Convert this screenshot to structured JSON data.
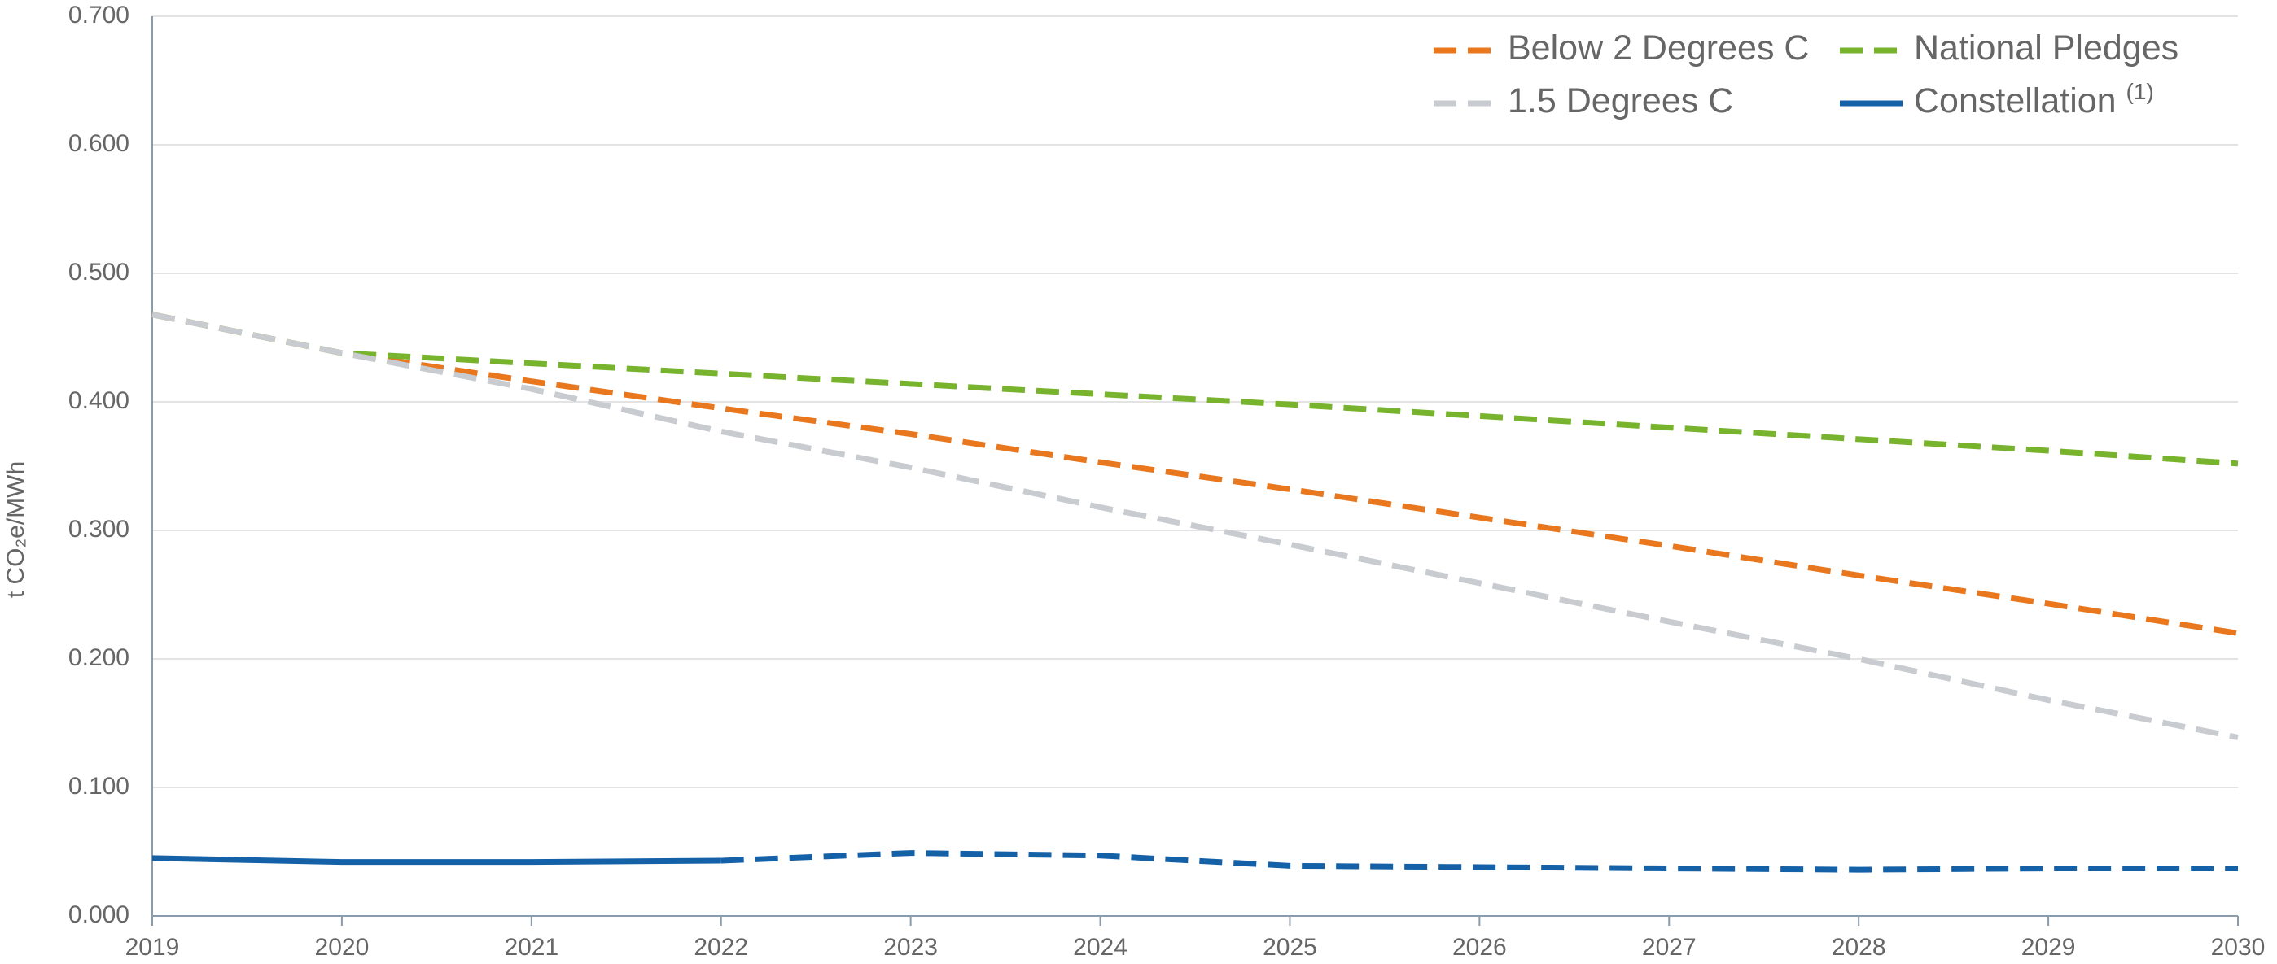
{
  "chart_data": {
    "type": "line",
    "ylabel": "t CO₂e/MWh",
    "x": [
      2019,
      2020,
      2021,
      2022,
      2023,
      2024,
      2025,
      2026,
      2027,
      2028,
      2029,
      2030
    ],
    "xlim": [
      2019,
      2030
    ],
    "xticks": [
      2019,
      2020,
      2021,
      2022,
      2023,
      2024,
      2025,
      2026,
      2027,
      2028,
      2029,
      2030
    ],
    "ylim": [
      0,
      0.7
    ],
    "yticks": [
      {
        "value": 0,
        "label": "0.000"
      },
      {
        "value": 0.1,
        "label": "0.100"
      },
      {
        "value": 0.2,
        "label": "0.200"
      },
      {
        "value": 0.3,
        "label": "0.300"
      },
      {
        "value": 0.4,
        "label": "0.400"
      },
      {
        "value": 0.5,
        "label": "0.500"
      },
      {
        "value": 0.6,
        "label": "0.600"
      },
      {
        "value": 0.7,
        "label": "0.700"
      }
    ],
    "grid": true,
    "legend": "top-right",
    "series": [
      {
        "name": "Below 2 Degrees C",
        "color": "#e8771e",
        "dashed": true,
        "values": [
          0.468,
          0.438,
          0.416,
          0.395,
          0.375,
          0.353,
          0.332,
          0.31,
          0.288,
          0.265,
          0.243,
          0.22
        ]
      },
      {
        "name": "National Pledges",
        "color": "#77b32d",
        "dashed": true,
        "values": [
          0.468,
          0.438,
          0.43,
          0.422,
          0.414,
          0.406,
          0.398,
          0.389,
          0.38,
          0.371,
          0.362,
          0.352
        ]
      },
      {
        "name": "1.5 Degrees C",
        "color": "#c8cbd0",
        "dashed": true,
        "values": [
          0.468,
          0.438,
          0.41,
          0.377,
          0.349,
          0.318,
          0.289,
          0.259,
          0.229,
          0.2,
          0.168,
          0.139
        ]
      },
      {
        "name": "Constellation",
        "name_note": "(1)",
        "color": "#1561a8",
        "dashed": false,
        "dashed_from": 2022,
        "values": [
          0.045,
          0.042,
          0.042,
          0.043,
          0.049,
          0.047,
          0.039,
          0.038,
          0.037,
          0.036,
          0.037,
          0.037
        ]
      }
    ]
  }
}
